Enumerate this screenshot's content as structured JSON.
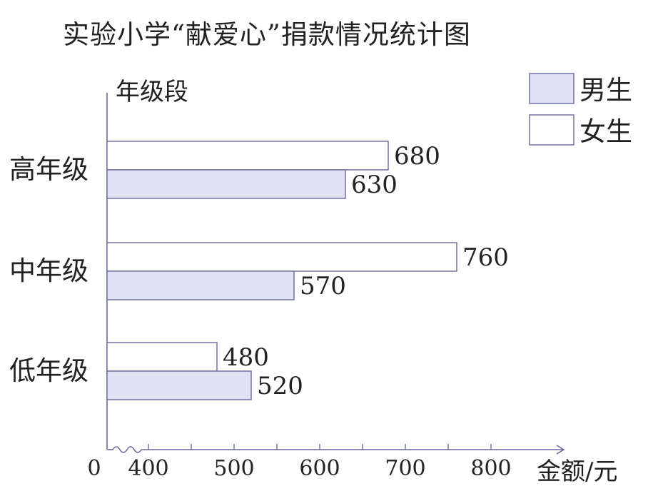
{
  "chart_data": {
    "type": "bar",
    "orientation": "horizontal",
    "title": "实验小学“献爱心”捐款情况统计图",
    "ylabel": "年级段",
    "xlabel": "金额/元",
    "categories": [
      "高年级",
      "中年级",
      "低年级"
    ],
    "series": [
      {
        "name": "女生",
        "values": [
          680,
          760,
          480
        ],
        "color": "#ffffff"
      },
      {
        "name": "男生",
        "values": [
          630,
          570,
          520
        ],
        "color": "#e0e2f4"
      }
    ],
    "x_ticks": [
      0,
      400,
      500,
      600,
      700,
      800
    ],
    "x_axis_break": true,
    "xlim": [
      350,
      870
    ],
    "legend": {
      "placement": "top-right",
      "entries": [
        "男生",
        "女生"
      ]
    },
    "data_labels": true,
    "grid": false
  }
}
